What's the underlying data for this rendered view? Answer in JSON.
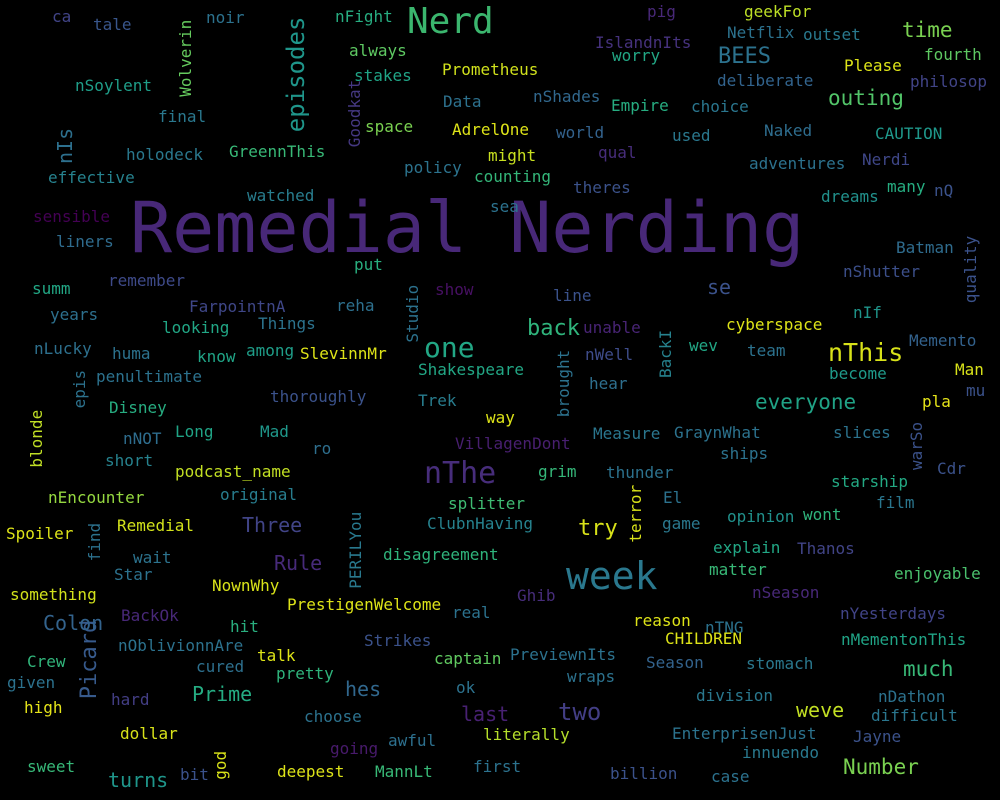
{
  "words": [
    {
      "text": "Remedial Nerding",
      "color": "#482878"
    },
    {
      "text": "Nerd",
      "color": "#3bb66e"
    },
    {
      "text": "week",
      "color": "#2a788e"
    },
    {
      "text": "nThe",
      "color": "#472d7b"
    },
    {
      "text": "one",
      "color": "#22a785"
    },
    {
      "text": "nThis",
      "color": "#d8e219"
    },
    {
      "text": "two",
      "color": "#433e85"
    },
    {
      "text": "episodes",
      "color": "#1f968b"
    },
    {
      "text": "Picard",
      "color": "#375a8c"
    },
    {
      "text": "BEES",
      "color": "#2c728e"
    },
    {
      "text": "time",
      "color": "#7ad151"
    },
    {
      "text": "outing",
      "color": "#52c569"
    },
    {
      "text": "everyone",
      "color": "#20a386"
    },
    {
      "text": "back",
      "color": "#2fb47c"
    },
    {
      "text": "try",
      "color": "#d8e219"
    },
    {
      "text": "Three",
      "color": "#414487"
    },
    {
      "text": "Rule",
      "color": "#472a7a"
    },
    {
      "text": "Colon",
      "color": "#33638d"
    },
    {
      "text": "Prime",
      "color": "#25ac82"
    },
    {
      "text": "hes",
      "color": "#31688e"
    },
    {
      "text": "last",
      "color": "#482173"
    },
    {
      "text": "weve",
      "color": "#c2df23"
    },
    {
      "text": "much",
      "color": "#38b977"
    },
    {
      "text": "Number",
      "color": "#7ad151"
    },
    {
      "text": "turns",
      "color": "#1f968b"
    },
    {
      "text": "nIs",
      "color": "#2d708e"
    },
    {
      "text": "se",
      "color": "#3b528b"
    },
    {
      "text": "ca",
      "color": "#414487"
    },
    {
      "text": "tale",
      "color": "#39568c"
    },
    {
      "text": "noir",
      "color": "#2c728e"
    },
    {
      "text": "nFight",
      "color": "#27ad81"
    },
    {
      "text": "pig",
      "color": "#482878"
    },
    {
      "text": "geekFor",
      "color": "#bddf26"
    },
    {
      "text": "IslandnIts",
      "color": "#46327e"
    },
    {
      "text": "Netflix",
      "color": "#2c728e"
    },
    {
      "text": "outset",
      "color": "#29798e"
    },
    {
      "text": "fourth",
      "color": "#5ec962"
    },
    {
      "text": "Please",
      "color": "#dde318"
    },
    {
      "text": "philosop",
      "color": "#414487"
    },
    {
      "text": "Wolverin",
      "color": "#65cb5e"
    },
    {
      "text": "always",
      "color": "#5ec962"
    },
    {
      "text": "worry",
      "color": "#22a785"
    },
    {
      "text": "nSoylent",
      "color": "#1f9e89"
    },
    {
      "text": "stakes",
      "color": "#20a486"
    },
    {
      "text": "Prometheus",
      "color": "#d0e11c"
    },
    {
      "text": "deliberate",
      "color": "#32648e"
    },
    {
      "text": "Data",
      "color": "#2d718e"
    },
    {
      "text": "nShades",
      "color": "#31688e"
    },
    {
      "text": "Empire",
      "color": "#27ad81"
    },
    {
      "text": "choice",
      "color": "#2a768e"
    },
    {
      "text": "final",
      "color": "#2a788e"
    },
    {
      "text": "Goodkat",
      "color": "#453882"
    },
    {
      "text": "space",
      "color": "#7ad151"
    },
    {
      "text": "AdrelOne",
      "color": "#dde318"
    },
    {
      "text": "world",
      "color": "#33628d"
    },
    {
      "text": "used",
      "color": "#2a788e"
    },
    {
      "text": "Naked",
      "color": "#2e6d8e"
    },
    {
      "text": "CAUTION",
      "color": "#1f988b"
    },
    {
      "text": "holodeck",
      "color": "#2a788e"
    },
    {
      "text": "GreennThis",
      "color": "#38b977"
    },
    {
      "text": "might",
      "color": "#c8e020"
    },
    {
      "text": "qual",
      "color": "#472d7b"
    },
    {
      "text": "adventures",
      "color": "#2c728e"
    },
    {
      "text": "Nerdi",
      "color": "#3f4788"
    },
    {
      "text": "effective",
      "color": "#26828e"
    },
    {
      "text": "policy",
      "color": "#2c738e"
    },
    {
      "text": "counting",
      "color": "#34b679"
    },
    {
      "text": "theres",
      "color": "#3b528b"
    },
    {
      "text": "many",
      "color": "#26ad81"
    },
    {
      "text": "nQ",
      "color": "#3b528b"
    },
    {
      "text": "watched",
      "color": "#287d8e"
    },
    {
      "text": "dreams",
      "color": "#21918c"
    },
    {
      "text": "sensible",
      "color": "#440154"
    },
    {
      "text": "sea",
      "color": "#2c728e"
    },
    {
      "text": "liners",
      "color": "#2f6c8e"
    },
    {
      "text": "Batman",
      "color": "#2f6c8e"
    },
    {
      "text": "quality",
      "color": "#3b528b"
    },
    {
      "text": "put",
      "color": "#29af7f"
    },
    {
      "text": "nShutter",
      "color": "#3c4f8a"
    },
    {
      "text": "summ",
      "color": "#22a785"
    },
    {
      "text": "remember",
      "color": "#3e4a89"
    },
    {
      "text": "show",
      "color": "#471063"
    },
    {
      "text": "line",
      "color": "#3b528b"
    },
    {
      "text": "years",
      "color": "#2d708e"
    },
    {
      "text": "FarpointnA",
      "color": "#3f4788"
    },
    {
      "text": "reha",
      "color": "#2d708e"
    },
    {
      "text": "Studio",
      "color": "#2c728e"
    },
    {
      "text": "nIf",
      "color": "#1f958b"
    },
    {
      "text": "looking",
      "color": "#21a685"
    },
    {
      "text": "Things",
      "color": "#2c738e"
    },
    {
      "text": "unable",
      "color": "#482475"
    },
    {
      "text": "cyberspace",
      "color": "#dde318"
    },
    {
      "text": "Memento",
      "color": "#33628d"
    },
    {
      "text": "nLucky",
      "color": "#2d708e"
    },
    {
      "text": "huma",
      "color": "#2c728e"
    },
    {
      "text": "know",
      "color": "#20a486"
    },
    {
      "text": "among",
      "color": "#1f9e89"
    },
    {
      "text": "SlevinnMr",
      "color": "#dde318"
    },
    {
      "text": "nWell",
      "color": "#3e4c8a"
    },
    {
      "text": "BackI",
      "color": "#26828e"
    },
    {
      "text": "wev",
      "color": "#22a785"
    },
    {
      "text": "team",
      "color": "#2c728e"
    },
    {
      "text": "become",
      "color": "#1f9a8a"
    },
    {
      "text": "Man",
      "color": "#d8e219"
    },
    {
      "text": "penultimate",
      "color": "#2c728e"
    },
    {
      "text": "epis",
      "color": "#2c728e"
    },
    {
      "text": "Shakespeare",
      "color": "#22a785"
    },
    {
      "text": "brought",
      "color": "#2c728e"
    },
    {
      "text": "hear",
      "color": "#2e6f8e"
    },
    {
      "text": "mu",
      "color": "#3b528b"
    },
    {
      "text": "Disney",
      "color": "#27ad81"
    },
    {
      "text": "thoroughly",
      "color": "#3b528b"
    },
    {
      "text": "Trek",
      "color": "#287d8e"
    },
    {
      "text": "pla",
      "color": "#e5e419"
    },
    {
      "text": "blonde",
      "color": "#c0df25"
    },
    {
      "text": "way",
      "color": "#dde318"
    },
    {
      "text": "nNOT",
      "color": "#2e6d8e"
    },
    {
      "text": "Long",
      "color": "#20a486"
    },
    {
      "text": "Mad",
      "color": "#1f988b"
    },
    {
      "text": "Measure",
      "color": "#2a768e"
    },
    {
      "text": "GraynWhat",
      "color": "#2c728e"
    },
    {
      "text": "slices",
      "color": "#2c738e"
    },
    {
      "text": "warSo",
      "color": "#3b528b"
    },
    {
      "text": "ro",
      "color": "#2e6f8e"
    },
    {
      "text": "VillagenDont",
      "color": "#481f70"
    },
    {
      "text": "short",
      "color": "#26828e"
    },
    {
      "text": "ships",
      "color": "#2c728e"
    },
    {
      "text": "Cdr",
      "color": "#3b528b"
    },
    {
      "text": "grim",
      "color": "#35b779"
    },
    {
      "text": "thunder",
      "color": "#2c728e"
    },
    {
      "text": "podcast_name",
      "color": "#c2df23"
    },
    {
      "text": "starship",
      "color": "#23a983"
    },
    {
      "text": "nEncounter",
      "color": "#95d840"
    },
    {
      "text": "original",
      "color": "#287d8e"
    },
    {
      "text": "terror",
      "color": "#d8e219"
    },
    {
      "text": "El",
      "color": "#2c728e"
    },
    {
      "text": "film",
      "color": "#2a768e"
    },
    {
      "text": "splitter",
      "color": "#3fbc73"
    },
    {
      "text": "Remedial",
      "color": "#d2e21b"
    },
    {
      "text": "PERILYou",
      "color": "#29798e"
    },
    {
      "text": "wont",
      "color": "#2fb47c"
    },
    {
      "text": "opinion",
      "color": "#21918c"
    },
    {
      "text": "Spoiler",
      "color": "#dde318"
    },
    {
      "text": "ClubnHaving",
      "color": "#26828e"
    },
    {
      "text": "game",
      "color": "#2a788e"
    },
    {
      "text": "find",
      "color": "#2c728e"
    },
    {
      "text": "explain",
      "color": "#22a785"
    },
    {
      "text": "Thanos",
      "color": "#414487"
    },
    {
      "text": "wait",
      "color": "#2c738e"
    },
    {
      "text": "disagreement",
      "color": "#2fb47c"
    },
    {
      "text": "Star",
      "color": "#2c728e"
    },
    {
      "text": "matter",
      "color": "#38b977"
    },
    {
      "text": "enjoyable",
      "color": "#4ac16d"
    },
    {
      "text": "NownWhy",
      "color": "#d8e219"
    },
    {
      "text": "something",
      "color": "#d2e21b"
    },
    {
      "text": "Ghib",
      "color": "#472d7b"
    },
    {
      "text": "nSeason",
      "color": "#482878"
    },
    {
      "text": "PrestigenWelcome",
      "color": "#dde318"
    },
    {
      "text": "BackOk",
      "color": "#482878"
    },
    {
      "text": "real",
      "color": "#2c728e"
    },
    {
      "text": "reason",
      "color": "#dde318"
    },
    {
      "text": "nTNG",
      "color": "#2c728e"
    },
    {
      "text": "nYesterdays",
      "color": "#414487"
    },
    {
      "text": "hit",
      "color": "#29af7f"
    },
    {
      "text": "CHILDREN",
      "color": "#dde318"
    },
    {
      "text": "nMementonThis",
      "color": "#20a486"
    },
    {
      "text": "Strikes",
      "color": "#3b528b"
    },
    {
      "text": "Crew",
      "color": "#31b57b"
    },
    {
      "text": "nOblivionnAre",
      "color": "#2c728e"
    },
    {
      "text": "cured",
      "color": "#2d708e"
    },
    {
      "text": "talk",
      "color": "#dde318"
    },
    {
      "text": "captain",
      "color": "#60ca60"
    },
    {
      "text": "PreviewnIts",
      "color": "#2c728e"
    },
    {
      "text": "Season",
      "color": "#33638d"
    },
    {
      "text": "stomach",
      "color": "#2a788e"
    },
    {
      "text": "given",
      "color": "#2c728e"
    },
    {
      "text": "pretty",
      "color": "#2fb47c"
    },
    {
      "text": "wraps",
      "color": "#2c728e"
    },
    {
      "text": "division",
      "color": "#2a788e"
    },
    {
      "text": "nDathon",
      "color": "#2c728e"
    },
    {
      "text": "hard",
      "color": "#433e85"
    },
    {
      "text": "ok",
      "color": "#2c728e"
    },
    {
      "text": "high",
      "color": "#e5e419"
    },
    {
      "text": "choose",
      "color": "#2c728e"
    },
    {
      "text": "difficult",
      "color": "#2a768e"
    },
    {
      "text": "dollar",
      "color": "#d8e219"
    },
    {
      "text": "going",
      "color": "#481a6c"
    },
    {
      "text": "awful",
      "color": "#2d708e"
    },
    {
      "text": "literally",
      "color": "#b5de2b"
    },
    {
      "text": "EnterprisenJust",
      "color": "#2c738e"
    },
    {
      "text": "Jayne",
      "color": "#3b528b"
    },
    {
      "text": "innuendo",
      "color": "#29798e"
    },
    {
      "text": "sweet",
      "color": "#37b878"
    },
    {
      "text": "bit",
      "color": "#3b528b"
    },
    {
      "text": "god",
      "color": "#d8e219"
    },
    {
      "text": "deepest",
      "color": "#dde318"
    },
    {
      "text": "MannLt",
      "color": "#38b977"
    },
    {
      "text": "first",
      "color": "#2c728e"
    },
    {
      "text": "billion",
      "color": "#3b528b"
    },
    {
      "text": "case",
      "color": "#2c728e"
    }
  ]
}
